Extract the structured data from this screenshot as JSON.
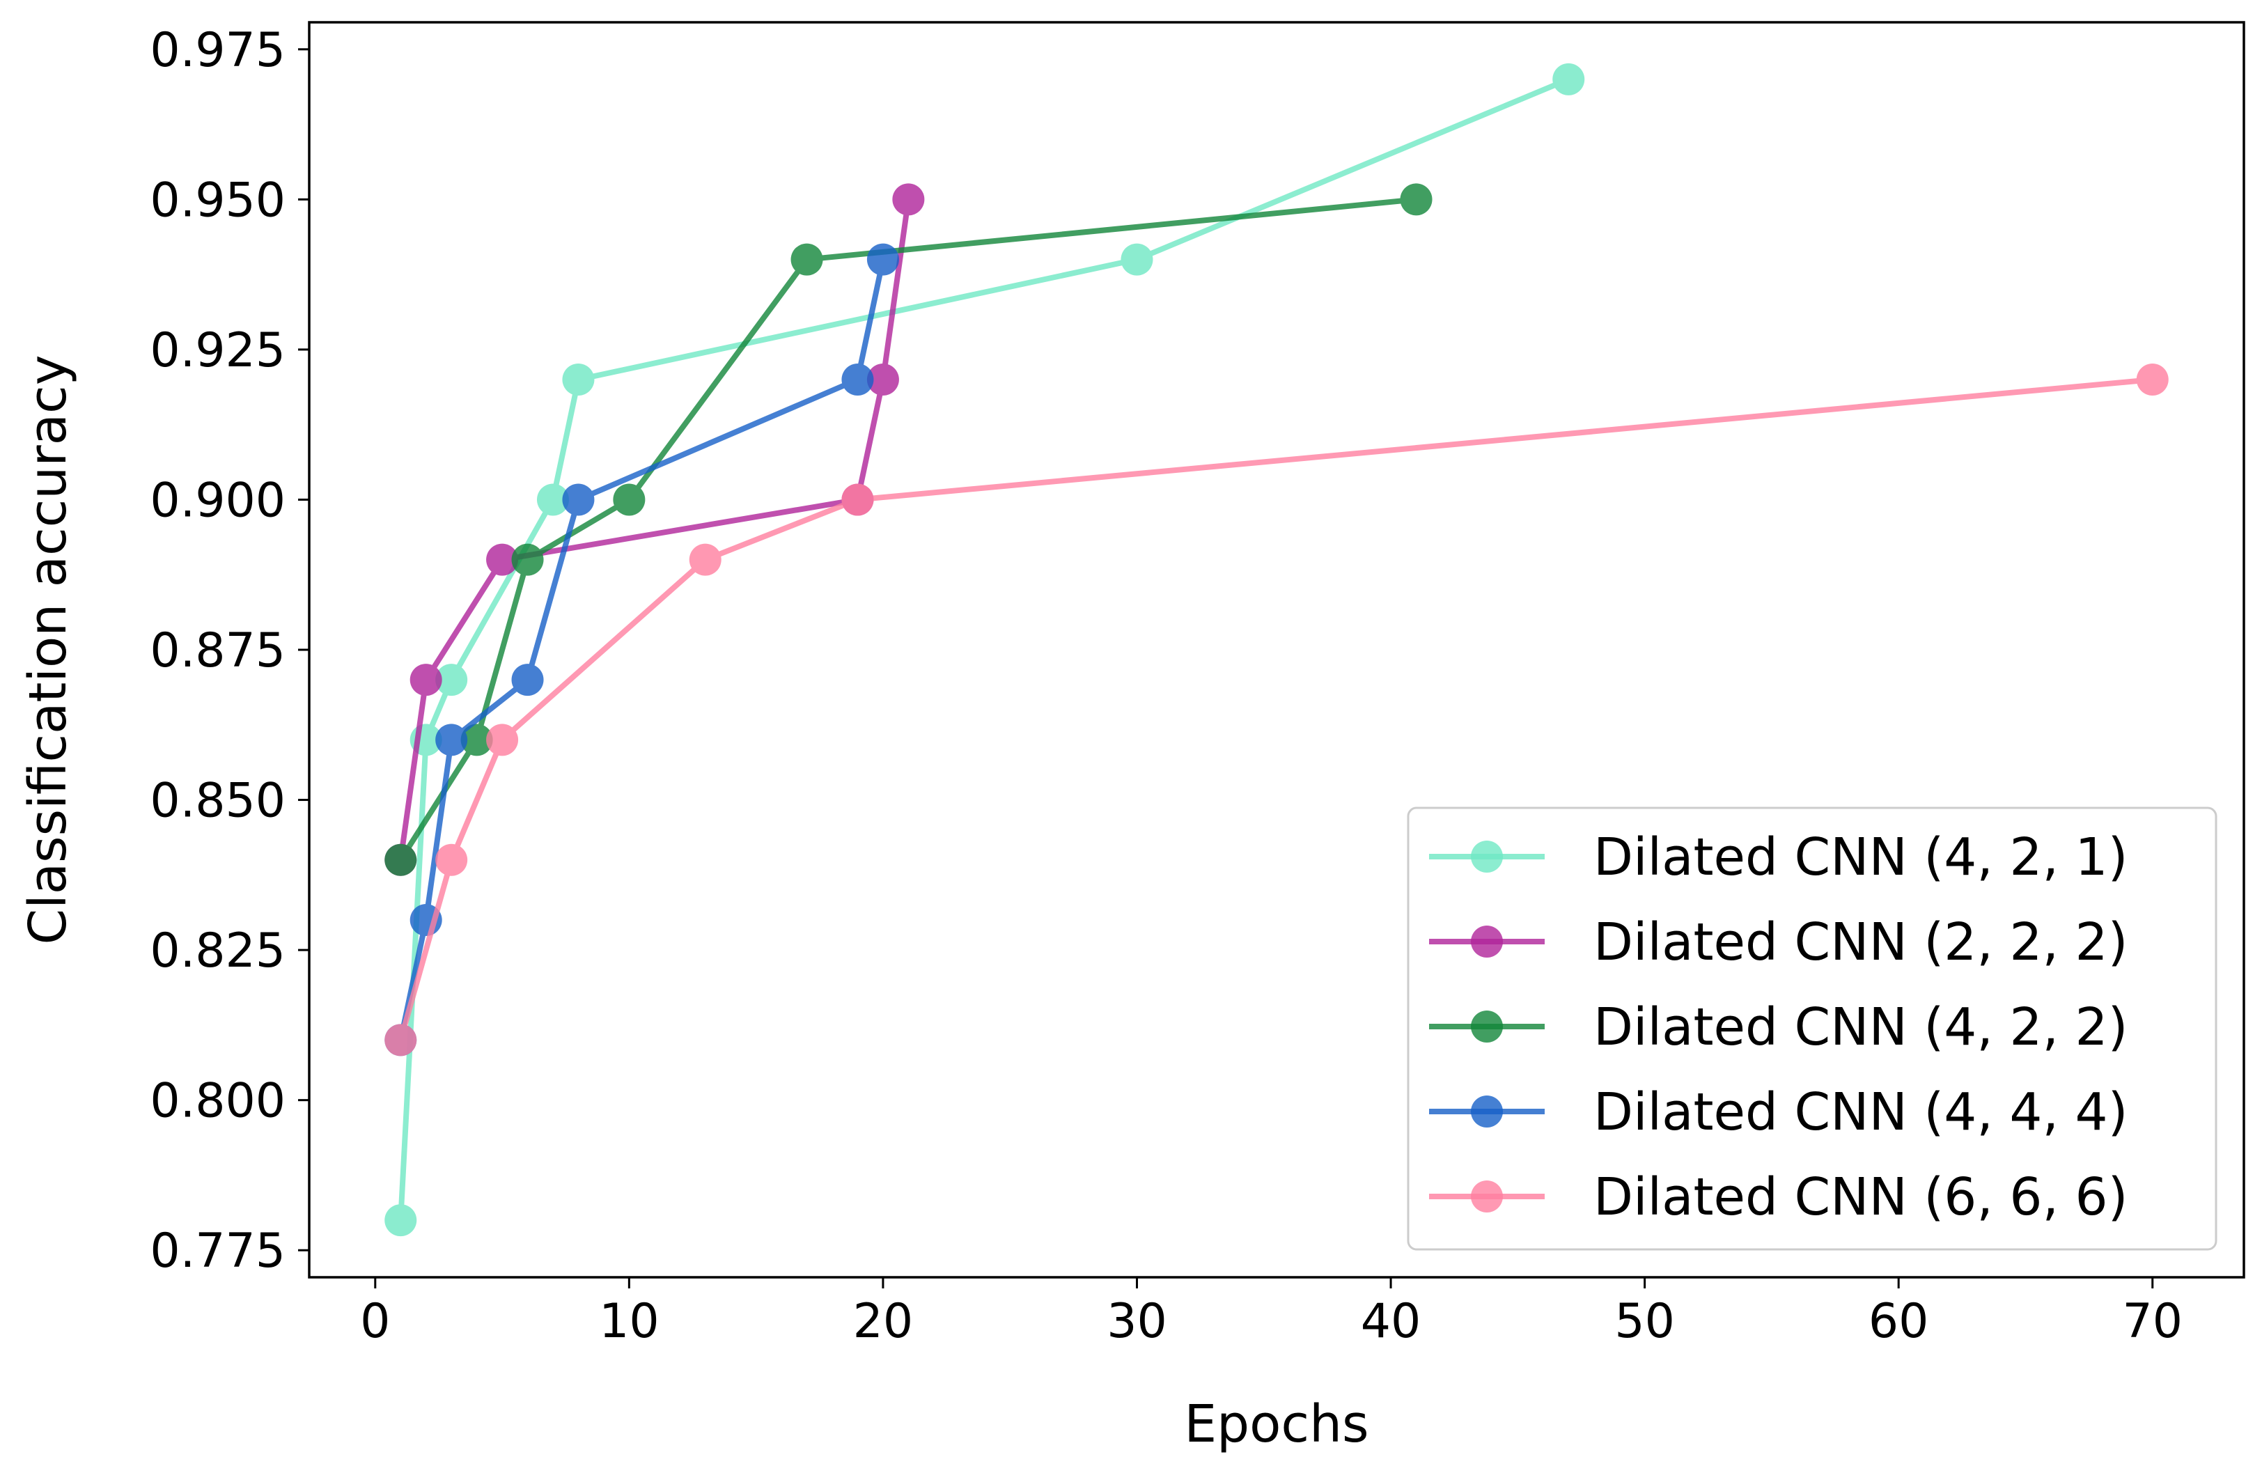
{
  "chart_data": {
    "type": "line",
    "title": "",
    "xlabel": "Epochs",
    "ylabel": "Classification accuracy",
    "xlim": [
      -2.6,
      73.6
    ],
    "ylim": [
      0.7705,
      0.9795
    ],
    "xticks": [
      0,
      10,
      20,
      30,
      40,
      50,
      60,
      70
    ],
    "xtick_labels": [
      "0",
      "10",
      "20",
      "30",
      "40",
      "50",
      "60",
      "70"
    ],
    "yticks": [
      0.775,
      0.8,
      0.825,
      0.85,
      0.875,
      0.9,
      0.925,
      0.95,
      0.975
    ],
    "ytick_labels": [
      "0.775",
      "0.800",
      "0.825",
      "0.850",
      "0.875",
      "0.900",
      "0.925",
      "0.950",
      "0.975"
    ],
    "grid": false,
    "legend_position": "bottom-right",
    "series": [
      {
        "name": "Dilated CNN (4, 2, 1)",
        "color": "#6fe8c4",
        "x": [
          1,
          2,
          3,
          7,
          8,
          30,
          47
        ],
        "y": [
          0.78,
          0.86,
          0.87,
          0.9,
          0.92,
          0.94,
          0.97
        ]
      },
      {
        "name": "Dilated CNN (2, 2, 2)",
        "color": "#b0249a",
        "x": [
          1,
          2,
          5,
          19,
          20,
          21
        ],
        "y": [
          0.84,
          0.87,
          0.89,
          0.9,
          0.92,
          0.95
        ]
      },
      {
        "name": "Dilated CNN (4, 2, 2)",
        "color": "#12863a",
        "x": [
          1,
          4,
          6,
          10,
          17,
          41
        ],
        "y": [
          0.84,
          0.86,
          0.89,
          0.9,
          0.94,
          0.95
        ]
      },
      {
        "name": "Dilated CNN (4, 4, 4)",
        "color": "#1760c8",
        "x": [
          1,
          2,
          3,
          6,
          8,
          19,
          20
        ],
        "y": [
          0.81,
          0.83,
          0.86,
          0.87,
          0.9,
          0.92,
          0.94
        ]
      },
      {
        "name": "Dilated CNN (6, 6, 6)",
        "color": "#ff7fa0",
        "x": [
          1,
          3,
          5,
          13,
          19,
          70
        ],
        "y": [
          0.81,
          0.84,
          0.86,
          0.89,
          0.9,
          0.92
        ]
      }
    ]
  }
}
